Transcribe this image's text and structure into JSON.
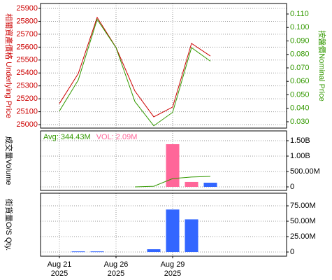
{
  "chart_data": [
    {
      "type": "line",
      "y_label": "相關資產價格 Underlying Price",
      "y_label_color": "#cc0000",
      "y2_label": "按盤價Nominal Price",
      "y2_label_color": "#339900",
      "ylim": [
        24973,
        25938
      ],
      "yticks": [
        25000,
        25100,
        25200,
        25300,
        25400,
        25500,
        25600,
        25700,
        25800,
        25900
      ],
      "y2lim": [
        0.0253,
        0.1178
      ],
      "y2ticks": [
        {
          "value": 0.03,
          "label": "0.030"
        },
        {
          "value": 0.04,
          "label": "0.040"
        },
        {
          "value": 0.05,
          "label": "0.050"
        },
        {
          "value": 0.06,
          "label": "0.060"
        },
        {
          "value": 0.07,
          "label": "0.070"
        },
        {
          "value": 0.08,
          "label": "0.080"
        },
        {
          "value": 0.09,
          "label": "0.090"
        },
        {
          "value": 0.1,
          "label": "0.100"
        },
        {
          "value": 0.11,
          "label": "0.110"
        }
      ],
      "grid": true,
      "series": [
        {
          "type": "line",
          "color": "#cc0000",
          "values": [
            25163,
            25396,
            25830,
            25597,
            25260,
            25060,
            25136,
            25629,
            25531
          ]
        },
        {
          "type": "line",
          "color": "#339900",
          "axis": "y2",
          "values": [
            0.038,
            0.061,
            0.106,
            0.085,
            0.045,
            0.027,
            0.037,
            0.085,
            0.075
          ]
        }
      ]
    },
    {
      "type": "bar",
      "y_label": "成交量Volume",
      "y_side": "right",
      "annotations": [
        {
          "text": "Avg: 344.43M",
          "color": "#339900"
        },
        {
          "text": "VOL: 2.09M",
          "color": "#ff6699"
        }
      ],
      "ylim": [
        -114000000,
        1818000000
      ],
      "yticks": [
        0,
        {
          "value": 500000000,
          "label": "500.00M"
        },
        {
          "value": 1000000000,
          "label": "1.00B"
        },
        {
          "value": 1500000000,
          "label": "1.50B"
        }
      ],
      "grid": true,
      "series": [
        {
          "type": "bar",
          "values": [
            null,
            null,
            null,
            null,
            null,
            null,
            1386000000,
            160000000,
            136000000
          ],
          "colors": [
            null,
            null,
            null,
            null,
            null,
            null,
            "#ff6699",
            "#ff6699",
            "#3366ff"
          ]
        },
        {
          "type": "line",
          "color": "#339900",
          "values": [
            null,
            null,
            null,
            null,
            0,
            20000000,
            270000000,
            320000000,
            340000000
          ]
        }
      ]
    },
    {
      "type": "bar",
      "y_label": "街貨量O/S Qty.",
      "y_side": "right",
      "ylim": [
        -6800000,
        95500000
      ],
      "yticks": [
        0,
        {
          "value": 25000000,
          "label": "25.00M"
        },
        {
          "value": 50000000,
          "label": "50.00M"
        },
        {
          "value": 75000000,
          "label": "75.00M"
        }
      ],
      "grid": true,
      "categories": [
        "Aug 21",
        null,
        null,
        "Aug 26",
        null,
        null,
        "Aug 29",
        null,
        null
      ],
      "category_years": [
        "2025",
        null,
        null,
        "2025",
        null,
        null,
        "2025",
        null,
        null
      ],
      "series": [
        {
          "type": "bar",
          "color": "#3366ff",
          "values": [
            null,
            1000000,
            1000000,
            null,
            null,
            4500000,
            69000000,
            53000000,
            null
          ]
        }
      ]
    }
  ]
}
